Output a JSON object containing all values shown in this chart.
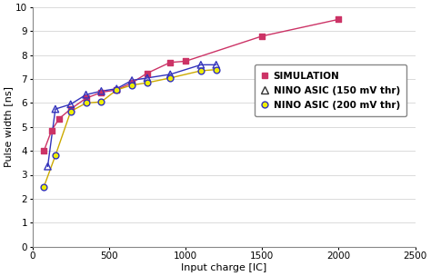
{
  "simulation_x": [
    75,
    125,
    175,
    250,
    350,
    450,
    550,
    650,
    750,
    900,
    1000,
    1500,
    2000
  ],
  "simulation_y": [
    4.0,
    4.85,
    5.35,
    5.75,
    6.2,
    6.45,
    6.55,
    6.85,
    7.25,
    7.7,
    7.75,
    8.8,
    9.5
  ],
  "nino150_x": [
    100,
    150,
    250,
    350,
    450,
    550,
    650,
    750,
    900,
    1100,
    1200
  ],
  "nino150_y": [
    3.35,
    5.75,
    5.95,
    6.35,
    6.5,
    6.6,
    6.95,
    7.05,
    7.2,
    7.6,
    7.6
  ],
  "nino200_x": [
    75,
    150,
    250,
    350,
    450,
    550,
    650,
    750,
    900,
    1100,
    1200
  ],
  "nino200_y": [
    2.5,
    3.8,
    5.65,
    6.0,
    6.05,
    6.55,
    6.75,
    6.85,
    7.05,
    7.35,
    7.4
  ],
  "sim_color": "#cc3366",
  "nino150_color": "#3333bb",
  "nino200_color": "#ccaa00",
  "xlabel": "Input charge [IC]",
  "ylabel": "Pulse width [ns]",
  "xlim": [
    0,
    2500
  ],
  "ylim": [
    0,
    10
  ],
  "xticks": [
    0,
    500,
    1000,
    1500,
    2000,
    2500
  ],
  "yticks": [
    0,
    1,
    2,
    3,
    4,
    5,
    6,
    7,
    8,
    9,
    10
  ],
  "legend_labels": [
    "SIMULATION",
    "NINO ASIC (150 mV thr)",
    "NINO ASIC (200 mV thr)"
  ]
}
